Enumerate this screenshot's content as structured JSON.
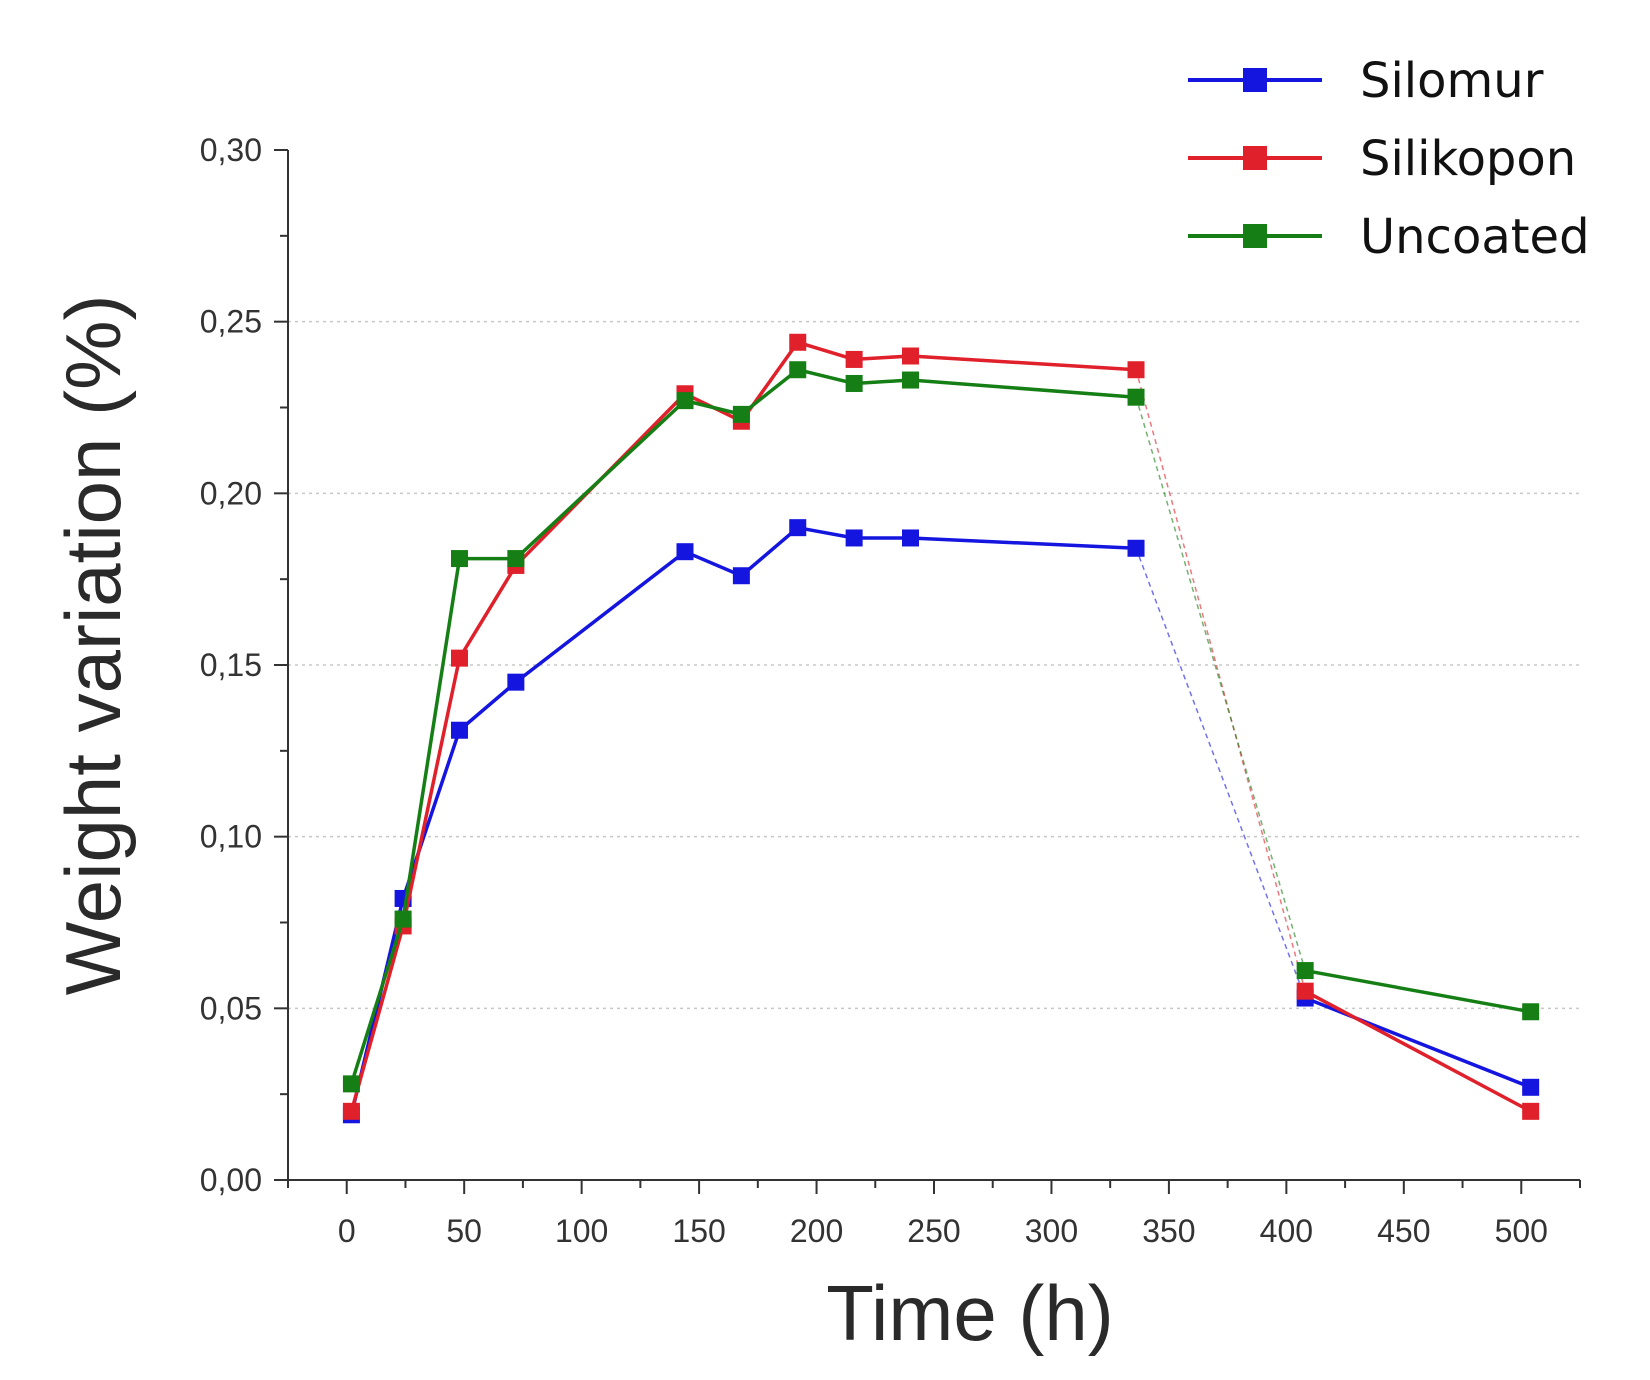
{
  "chart_data": {
    "type": "line",
    "xlabel": "Time (h)",
    "ylabel": "Weight variation (%)",
    "xlim": [
      -25,
      525
    ],
    "ylim": [
      0,
      0.3
    ],
    "x_ticks": [
      0,
      50,
      100,
      150,
      200,
      250,
      300,
      350,
      400,
      450,
      500
    ],
    "x_tick_labels": [
      "0",
      "50",
      "100",
      "150",
      "200",
      "250",
      "300",
      "350",
      "400",
      "450",
      "500"
    ],
    "y_ticks": [
      0,
      0.05,
      0.1,
      0.15,
      0.2,
      0.25,
      0.3
    ],
    "y_tick_labels": [
      "0,00",
      "0,05",
      "0,10",
      "0,15",
      "0,20",
      "0,25",
      "0,30"
    ],
    "grid": "horizontal dotted",
    "legend": "top-right",
    "dashed_gap_between": [
      336,
      408
    ],
    "x": [
      2,
      24,
      48,
      72,
      144,
      168,
      192,
      216,
      240,
      336,
      408,
      504
    ],
    "series": [
      {
        "name": "Silomur",
        "color": "#1515e0",
        "values": [
          0.019,
          0.082,
          0.131,
          0.145,
          0.183,
          0.176,
          0.19,
          0.187,
          0.187,
          0.184,
          0.053,
          0.027
        ]
      },
      {
        "name": "Silikopon",
        "color": "#e0202a",
        "values": [
          0.02,
          0.074,
          0.152,
          0.179,
          0.229,
          0.221,
          0.244,
          0.239,
          0.24,
          0.236,
          0.055,
          0.02
        ]
      },
      {
        "name": "Uncoated",
        "color": "#157f15",
        "values": [
          0.028,
          0.076,
          0.181,
          0.181,
          0.227,
          0.223,
          0.236,
          0.232,
          0.233,
          0.228,
          0.061,
          0.049
        ]
      }
    ]
  }
}
